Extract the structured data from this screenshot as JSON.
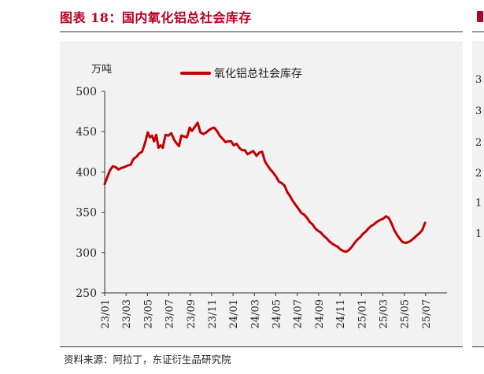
{
  "figure": {
    "title": "图表 18：国内氧化铝总社会库存",
    "source": "资料来源：阿拉丁，东证衍生品研究院",
    "accent_color": "#c00000"
  },
  "next_figure": {
    "visible_ticks": [
      "3",
      "3",
      "2",
      "2",
      "1",
      "1"
    ]
  },
  "chart_data": {
    "type": "line",
    "title": "",
    "ylabel": "万吨",
    "xlabel": "",
    "ylim": [
      250,
      500
    ],
    "yticks": [
      250,
      300,
      350,
      400,
      450,
      500
    ],
    "xlim": [
      "2023-01",
      "2025-09"
    ],
    "xticks": [
      "23/01",
      "23/03",
      "23/05",
      "23/07",
      "23/09",
      "23/11",
      "24/01",
      "24/03",
      "24/05",
      "24/07",
      "24/09",
      "24/11",
      "25/01",
      "25/03",
      "25/05",
      "25/07"
    ],
    "grid": false,
    "legend_position": "top",
    "series": [
      {
        "name": "氧化铝总社会库存",
        "color": "#c00000",
        "points": [
          [
            "2023-01-01",
            385
          ],
          [
            "2023-01-08",
            393
          ],
          [
            "2023-01-16",
            402
          ],
          [
            "2023-01-24",
            407
          ],
          [
            "2023-02-02",
            406
          ],
          [
            "2023-02-10",
            403
          ],
          [
            "2023-02-18",
            405
          ],
          [
            "2023-02-26",
            406
          ],
          [
            "2023-03-06",
            408
          ],
          [
            "2023-03-14",
            409
          ],
          [
            "2023-03-22",
            416
          ],
          [
            "2023-03-31",
            419
          ],
          [
            "2023-04-08",
            423
          ],
          [
            "2023-04-16",
            425
          ],
          [
            "2023-04-24",
            435
          ],
          [
            "2023-05-02",
            449
          ],
          [
            "2023-05-08",
            443
          ],
          [
            "2023-05-14",
            445
          ],
          [
            "2023-05-20",
            438
          ],
          [
            "2023-05-26",
            446
          ],
          [
            "2023-06-02",
            430
          ],
          [
            "2023-06-08",
            433
          ],
          [
            "2023-06-14",
            430
          ],
          [
            "2023-06-22",
            446
          ],
          [
            "2023-06-30",
            445
          ],
          [
            "2023-07-08",
            448
          ],
          [
            "2023-07-16",
            440
          ],
          [
            "2023-07-22",
            436
          ],
          [
            "2023-07-30",
            432
          ],
          [
            "2023-08-06",
            445
          ],
          [
            "2023-08-14",
            444
          ],
          [
            "2023-08-22",
            443
          ],
          [
            "2023-08-30",
            455
          ],
          [
            "2023-09-06",
            451
          ],
          [
            "2023-09-14",
            456
          ],
          [
            "2023-09-22",
            461
          ],
          [
            "2023-09-30",
            449
          ],
          [
            "2023-10-08",
            447
          ],
          [
            "2023-10-16",
            449
          ],
          [
            "2023-10-24",
            452
          ],
          [
            "2023-11-01",
            454
          ],
          [
            "2023-11-08",
            455
          ],
          [
            "2023-11-16",
            451
          ],
          [
            "2023-11-24",
            445
          ],
          [
            "2023-12-02",
            441
          ],
          [
            "2023-12-10",
            437
          ],
          [
            "2023-12-18",
            438
          ],
          [
            "2023-12-26",
            438
          ],
          [
            "2024-01-03",
            433
          ],
          [
            "2024-01-11",
            435
          ],
          [
            "2024-01-19",
            430
          ],
          [
            "2024-01-27",
            427
          ],
          [
            "2024-02-04",
            427
          ],
          [
            "2024-02-12",
            422
          ],
          [
            "2024-02-20",
            424
          ],
          [
            "2024-02-28",
            426
          ],
          [
            "2024-03-07",
            420
          ],
          [
            "2024-03-15",
            424
          ],
          [
            "2024-03-23",
            425
          ],
          [
            "2024-03-31",
            413
          ],
          [
            "2024-04-08",
            408
          ],
          [
            "2024-04-16",
            403
          ],
          [
            "2024-04-24",
            399
          ],
          [
            "2024-05-02",
            394
          ],
          [
            "2024-05-10",
            388
          ],
          [
            "2024-05-18",
            386
          ],
          [
            "2024-05-26",
            383
          ],
          [
            "2024-06-03",
            375
          ],
          [
            "2024-06-11",
            370
          ],
          [
            "2024-06-19",
            364
          ],
          [
            "2024-06-27",
            359
          ],
          [
            "2024-07-05",
            354
          ],
          [
            "2024-07-13",
            349
          ],
          [
            "2024-07-21",
            347
          ],
          [
            "2024-07-29",
            343
          ],
          [
            "2024-08-06",
            338
          ],
          [
            "2024-08-14",
            335
          ],
          [
            "2024-08-22",
            330
          ],
          [
            "2024-08-30",
            327
          ],
          [
            "2024-09-07",
            325
          ],
          [
            "2024-09-15",
            321
          ],
          [
            "2024-09-23",
            318
          ],
          [
            "2024-10-01",
            314
          ],
          [
            "2024-10-09",
            311
          ],
          [
            "2024-10-17",
            309
          ],
          [
            "2024-10-25",
            307
          ],
          [
            "2024-11-02",
            304
          ],
          [
            "2024-11-10",
            302
          ],
          [
            "2024-11-18",
            301
          ],
          [
            "2024-11-26",
            303
          ],
          [
            "2024-12-04",
            307
          ],
          [
            "2024-12-12",
            312
          ],
          [
            "2024-12-20",
            316
          ],
          [
            "2024-12-28",
            319
          ],
          [
            "2025-01-05",
            323
          ],
          [
            "2025-01-13",
            326
          ],
          [
            "2025-01-21",
            330
          ],
          [
            "2025-01-29",
            333
          ],
          [
            "2025-02-06",
            335
          ],
          [
            "2025-02-14",
            338
          ],
          [
            "2025-02-22",
            340
          ],
          [
            "2025-03-02",
            342
          ],
          [
            "2025-03-10",
            345
          ],
          [
            "2025-03-18",
            343
          ],
          [
            "2025-03-26",
            336
          ],
          [
            "2025-04-03",
            328
          ],
          [
            "2025-04-11",
            322
          ],
          [
            "2025-04-19",
            317
          ],
          [
            "2025-04-27",
            313
          ],
          [
            "2025-05-05",
            312
          ],
          [
            "2025-05-13",
            313
          ],
          [
            "2025-05-21",
            315
          ],
          [
            "2025-05-29",
            318
          ],
          [
            "2025-06-06",
            321
          ],
          [
            "2025-06-14",
            324
          ],
          [
            "2025-06-22",
            328
          ],
          [
            "2025-06-30",
            337
          ]
        ]
      }
    ]
  }
}
